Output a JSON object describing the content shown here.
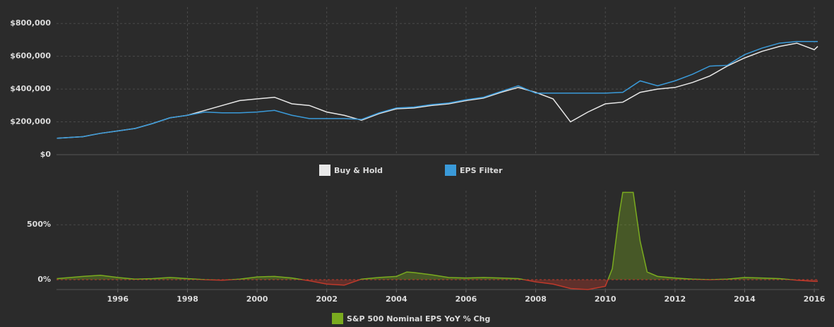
{
  "chart_data": [
    {
      "type": "line",
      "x": [
        1994.25,
        1995,
        1995.5,
        1996,
        1996.5,
        1997,
        1997.5,
        1998,
        1998.5,
        1999,
        1999.5,
        2000,
        2000.5,
        2001,
        2001.5,
        2002,
        2002.5,
        2003,
        2003.5,
        2004,
        2004.5,
        2005,
        2005.5,
        2006,
        2006.5,
        2007,
        2007.5,
        2008,
        2008.5,
        2009,
        2009.5,
        2010,
        2010.5,
        2011,
        2011.5,
        2012,
        2012.5,
        2013,
        2013.5,
        2014,
        2014.5,
        2015,
        2015.5,
        2016,
        2016.1
      ],
      "series": [
        {
          "name": "Buy & Hold",
          "color": "#e8e8e8",
          "values": [
            100000,
            110000,
            130000,
            145000,
            160000,
            190000,
            225000,
            240000,
            270000,
            300000,
            330000,
            340000,
            350000,
            310000,
            300000,
            260000,
            240000,
            210000,
            250000,
            280000,
            285000,
            300000,
            310000,
            330000,
            345000,
            380000,
            410000,
            380000,
            340000,
            200000,
            260000,
            310000,
            320000,
            380000,
            400000,
            410000,
            440000,
            480000,
            540000,
            590000,
            630000,
            660000,
            680000,
            640000,
            660000
          ]
        },
        {
          "name": "EPS Filter",
          "color": "#3a9ad9",
          "values": [
            100000,
            110000,
            130000,
            145000,
            160000,
            190000,
            225000,
            240000,
            260000,
            255000,
            255000,
            260000,
            270000,
            240000,
            220000,
            220000,
            220000,
            215000,
            255000,
            285000,
            290000,
            305000,
            315000,
            335000,
            350000,
            385000,
            420000,
            375000,
            375000,
            375000,
            375000,
            375000,
            380000,
            450000,
            420000,
            450000,
            490000,
            540000,
            545000,
            610000,
            650000,
            680000,
            690000,
            690000,
            690000
          ]
        }
      ],
      "xlim": [
        1994.24,
        2016.14
      ],
      "ylim": [
        0,
        900000
      ],
      "yticks": [
        {
          "value": 0,
          "label": "$0"
        },
        {
          "value": 200000,
          "label": "$200,000"
        },
        {
          "value": 400000,
          "label": "$400,000"
        },
        {
          "value": 600000,
          "label": "$600,000"
        },
        {
          "value": 800000,
          "label": "$800,000"
        }
      ],
      "grid": true
    },
    {
      "type": "area",
      "x": [
        1994.25,
        1995,
        1995.5,
        1996,
        1996.5,
        1997,
        1997.5,
        1998,
        1998.5,
        1999,
        1999.5,
        2000,
        2000.5,
        2001,
        2001.5,
        2002,
        2002.5,
        2003,
        2003.5,
        2004,
        2004.3,
        2004.5,
        2005,
        2005.5,
        2006,
        2006.5,
        2007,
        2007.5,
        2008,
        2008.5,
        2009,
        2009.5,
        2010,
        2010.2,
        2010.4,
        2010.5,
        2010.8,
        2011,
        2011.2,
        2011.5,
        2012,
        2012.5,
        2013,
        2013.5,
        2014,
        2014.5,
        2015,
        2015.5,
        2016,
        2016.1
      ],
      "series": [
        {
          "name": "S&P 500 Nominal EPS YoY % Chg",
          "color": "#7aab1f",
          "negative_color": "#c0392b",
          "values": [
            10,
            30,
            40,
            20,
            5,
            10,
            20,
            10,
            0,
            -5,
            5,
            25,
            30,
            15,
            -10,
            -40,
            -50,
            5,
            20,
            30,
            70,
            65,
            45,
            20,
            15,
            20,
            15,
            10,
            -20,
            -40,
            -80,
            -90,
            -60,
            100,
            600,
            795,
            795,
            350,
            70,
            30,
            15,
            5,
            0,
            5,
            20,
            15,
            10,
            -5,
            -15,
            -15
          ]
        }
      ],
      "xlim": [
        1994.24,
        2016.14
      ],
      "xticks": [
        1996,
        1998,
        2000,
        2002,
        2004,
        2006,
        2008,
        2010,
        2012,
        2014,
        2016
      ],
      "ylim": [
        -90,
        810
      ],
      "yticks": [
        {
          "value": 0,
          "label": "0%"
        },
        {
          "value": 500,
          "label": "500%"
        }
      ],
      "grid": true
    }
  ]
}
